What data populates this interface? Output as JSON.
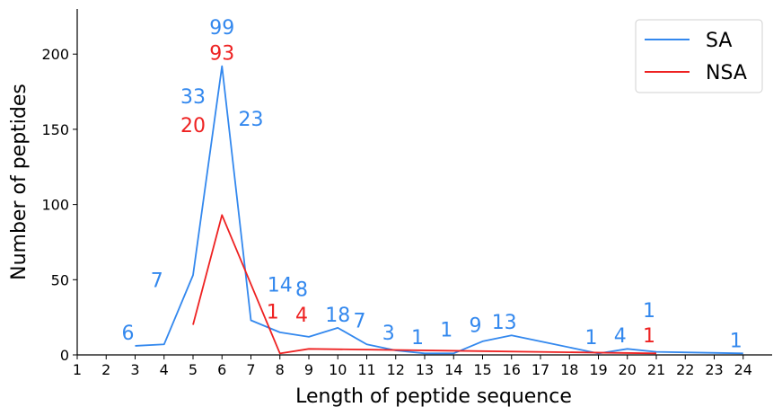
{
  "chart_data": {
    "type": "line",
    "xlabel": "Length of peptide sequence",
    "ylabel": "Number of peptides",
    "xlim": [
      1,
      25
    ],
    "ylim": [
      0,
      230
    ],
    "x_ticks": [
      1,
      2,
      3,
      4,
      5,
      6,
      7,
      8,
      9,
      10,
      11,
      12,
      13,
      14,
      15,
      16,
      17,
      18,
      19,
      20,
      21,
      22,
      23,
      24
    ],
    "y_ticks": [
      0,
      50,
      100,
      150,
      200
    ],
    "legend_position": "top-right",
    "series": [
      {
        "name": "SA",
        "color": "#3388ee",
        "points": [
          [
            3,
            6
          ],
          [
            4,
            7
          ],
          [
            5,
            53
          ],
          [
            6,
            192
          ],
          [
            7,
            23
          ],
          [
            8,
            15
          ],
          [
            9,
            12
          ],
          [
            10,
            18
          ],
          [
            11,
            7
          ],
          [
            12,
            3
          ],
          [
            13,
            1
          ],
          [
            14,
            1
          ],
          [
            15,
            9
          ],
          [
            16,
            13
          ],
          [
            19,
            1
          ],
          [
            20,
            4
          ],
          [
            21,
            2
          ],
          [
            24,
            1
          ]
        ]
      },
      {
        "name": "NSA",
        "color": "#ee2222",
        "points": [
          [
            5,
            20
          ],
          [
            6,
            93
          ],
          [
            8,
            1
          ],
          [
            9,
            4
          ],
          [
            21,
            1
          ]
        ]
      }
    ],
    "annotations": [
      {
        "text": "6",
        "x": 2.75,
        "y": 15,
        "series": "SA"
      },
      {
        "text": "7",
        "x": 3.75,
        "y": 50,
        "series": "SA"
      },
      {
        "text": "33",
        "x": 5.0,
        "y": 172,
        "series": "SA"
      },
      {
        "text": "20",
        "x": 5.0,
        "y": 153,
        "series": "NSA"
      },
      {
        "text": "99",
        "x": 6.0,
        "y": 218,
        "series": "SA"
      },
      {
        "text": "93",
        "x": 6.0,
        "y": 201,
        "series": "NSA"
      },
      {
        "text": "23",
        "x": 7.0,
        "y": 157,
        "series": "SA"
      },
      {
        "text": "14",
        "x": 8.0,
        "y": 47,
        "series": "SA"
      },
      {
        "text": "1",
        "x": 7.75,
        "y": 29,
        "series": "NSA"
      },
      {
        "text": "8",
        "x": 8.75,
        "y": 44,
        "series": "SA"
      },
      {
        "text": "4",
        "x": 8.75,
        "y": 27,
        "series": "NSA"
      },
      {
        "text": "18",
        "x": 10.0,
        "y": 27,
        "series": "SA"
      },
      {
        "text": "7",
        "x": 10.75,
        "y": 23,
        "series": "SA"
      },
      {
        "text": "3",
        "x": 11.75,
        "y": 15,
        "series": "SA"
      },
      {
        "text": "1",
        "x": 12.75,
        "y": 12,
        "series": "SA"
      },
      {
        "text": "1",
        "x": 13.75,
        "y": 17,
        "series": "SA"
      },
      {
        "text": "9",
        "x": 14.75,
        "y": 20,
        "series": "SA"
      },
      {
        "text": "13",
        "x": 15.75,
        "y": 22,
        "series": "SA"
      },
      {
        "text": "1",
        "x": 18.75,
        "y": 12,
        "series": "SA"
      },
      {
        "text": "4",
        "x": 19.75,
        "y": 13,
        "series": "SA"
      },
      {
        "text": "1",
        "x": 20.75,
        "y": 30,
        "series": "SA"
      },
      {
        "text": "1",
        "x": 20.75,
        "y": 13,
        "series": "NSA"
      },
      {
        "text": "1",
        "x": 23.75,
        "y": 10,
        "series": "SA"
      }
    ]
  }
}
